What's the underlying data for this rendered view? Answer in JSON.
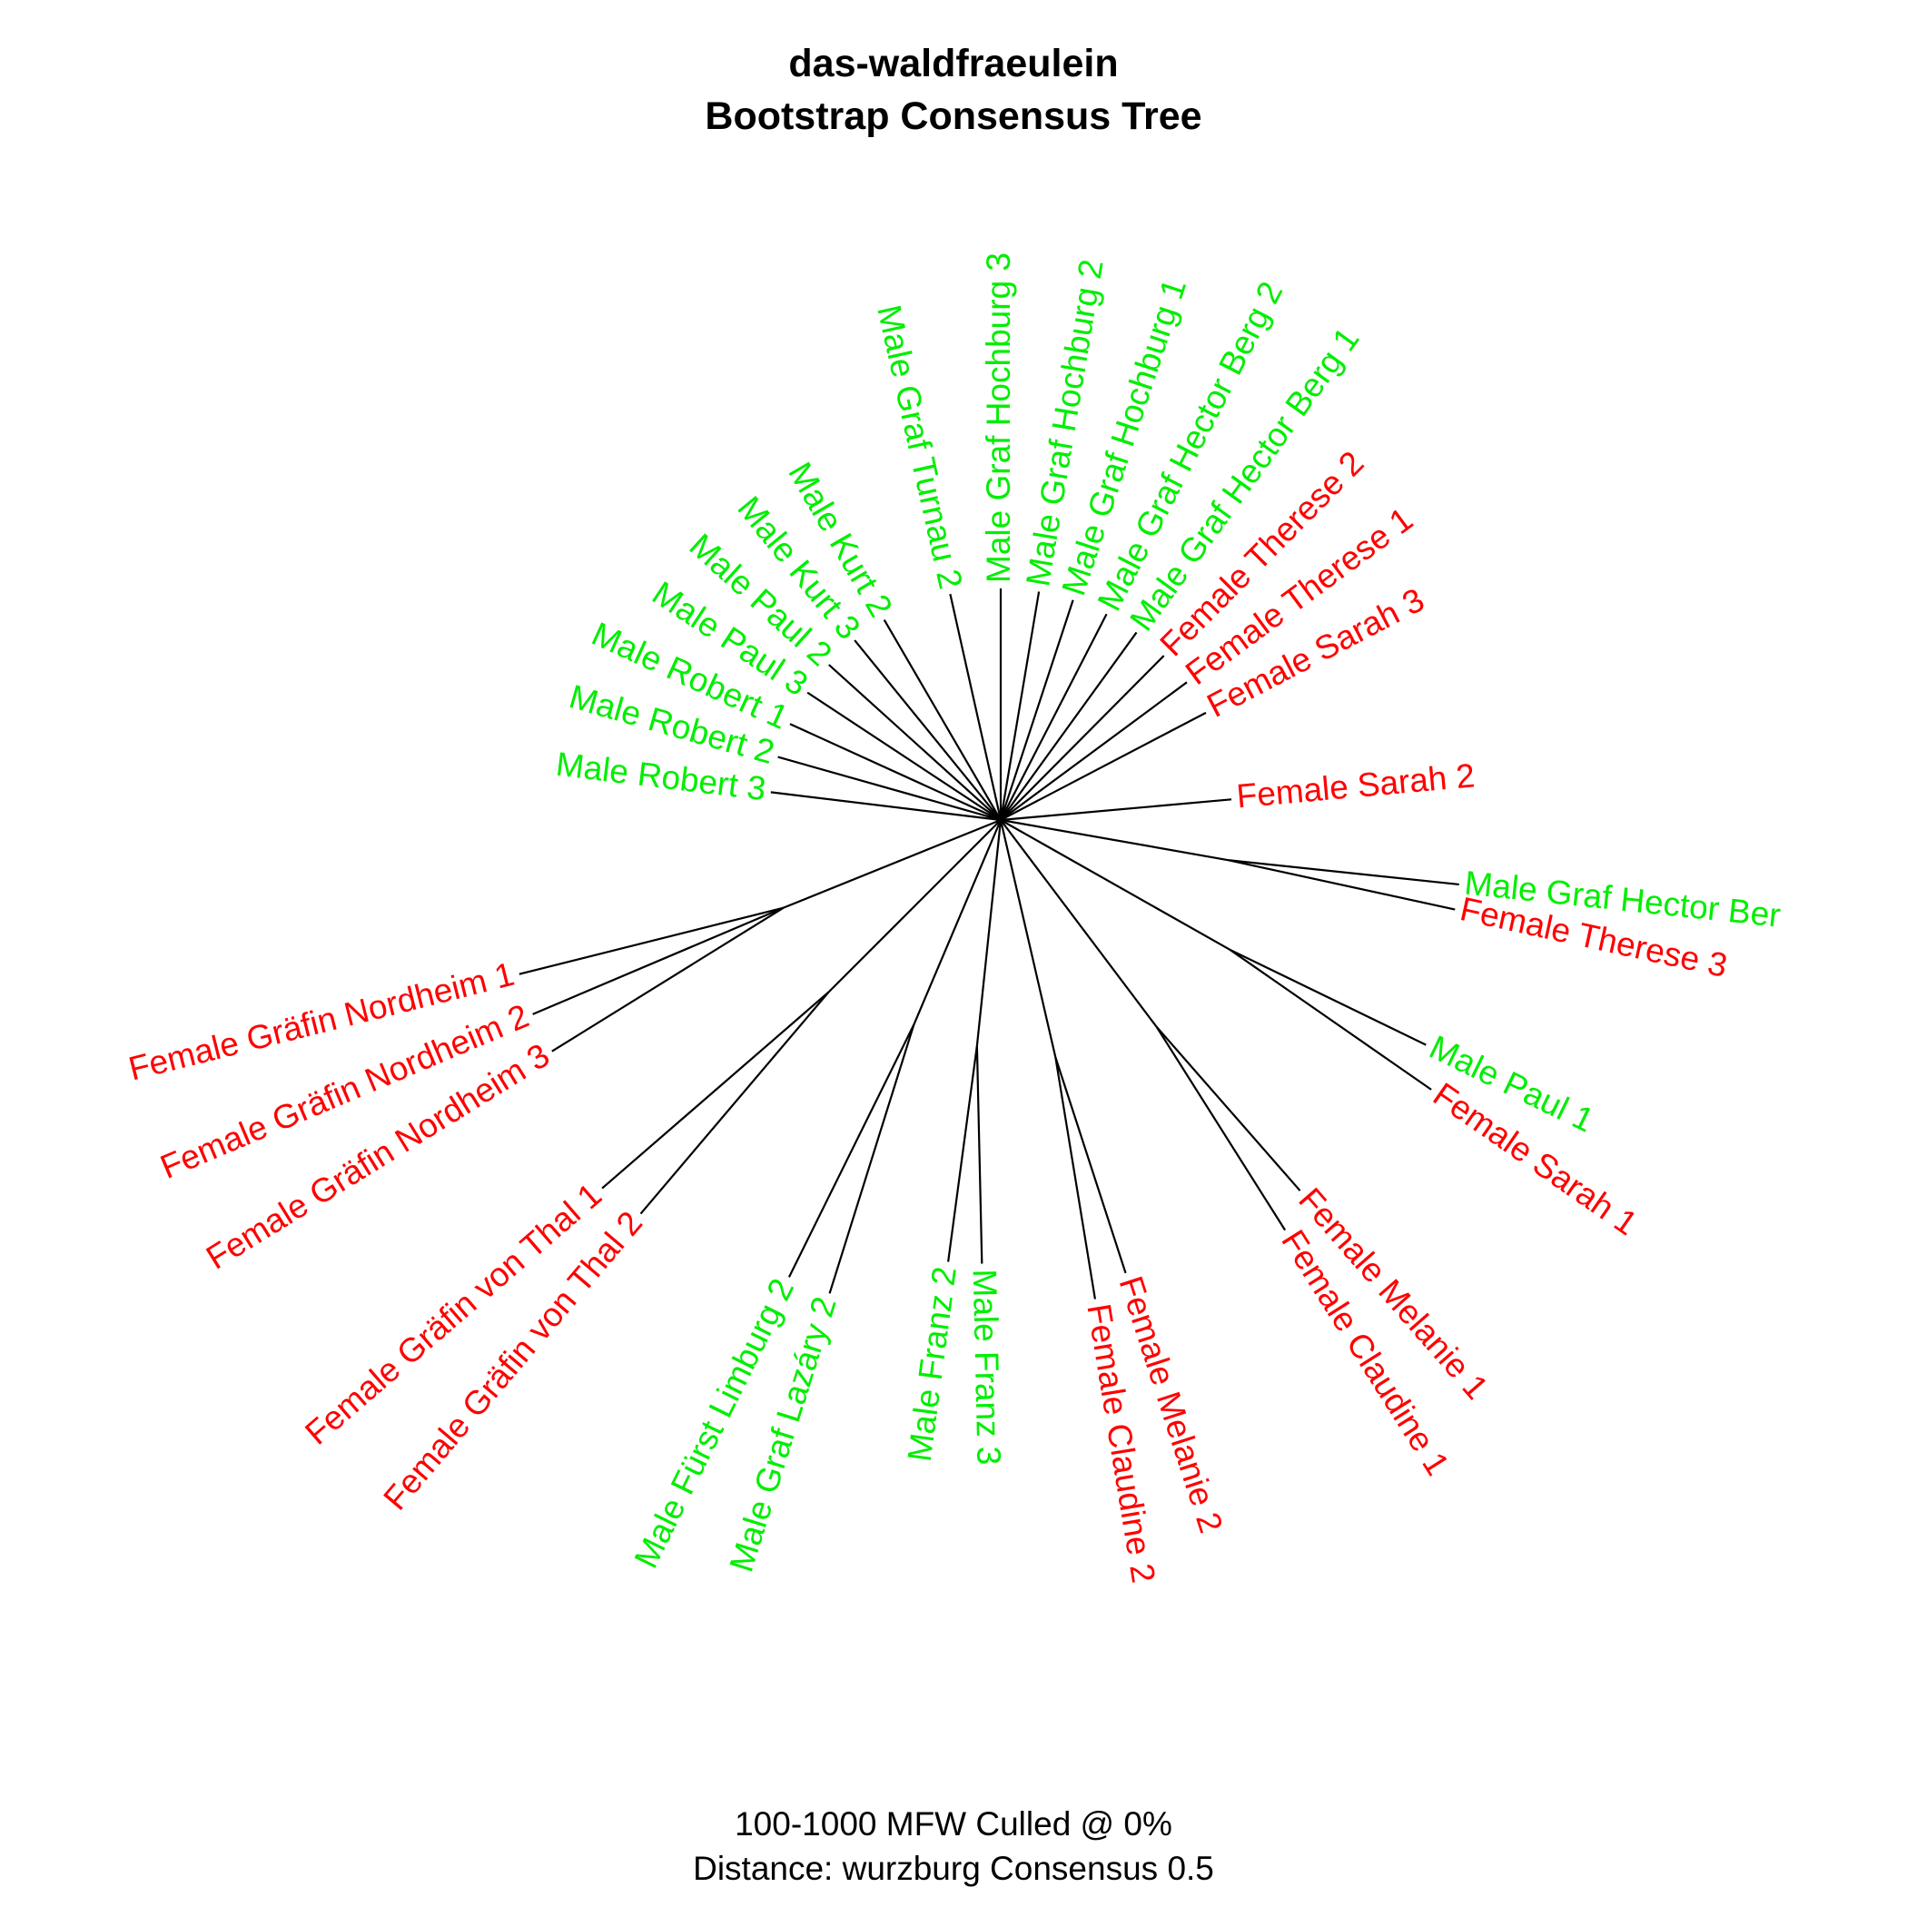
{
  "title": {
    "line1": "das-waldfraeulein",
    "line2": "Bootstrap Consensus Tree"
  },
  "footer": {
    "line1": "100-1000 MFW  Culled @ 0%",
    "line2": "Distance: wurzburg Consensus 0.5"
  },
  "colors": {
    "male": "#00ee00",
    "female": "#ff0000",
    "branch": "#000000"
  },
  "tree": {
    "type": "unrooted-radial",
    "groups": [
      {
        "leaves": [
          "Male Robert 3"
        ]
      },
      {
        "leaves": [
          "Male Robert 2"
        ]
      },
      {
        "leaves": [
          "Male Robert 1"
        ]
      },
      {
        "leaves": [
          "Male Paul 3"
        ]
      },
      {
        "leaves": [
          "Male Paul 2"
        ]
      },
      {
        "leaves": [
          "Male Kurt 3"
        ]
      },
      {
        "leaves": [
          "Male Kurt 2"
        ]
      },
      {
        "leaves": [
          "Male Graf Turnau 2"
        ]
      },
      {
        "leaves": [
          "Male Graf Hochburg 3"
        ]
      },
      {
        "leaves": [
          "Male Graf Hochburg 2"
        ]
      },
      {
        "leaves": [
          "Male Graf Hochburg 1"
        ]
      },
      {
        "leaves": [
          "Male Graf Hector Berg 2"
        ]
      },
      {
        "leaves": [
          "Male Graf Hector Berg 1"
        ]
      },
      {
        "leaves": [
          "Female Therese 2"
        ]
      },
      {
        "leaves": [
          "Female Therese 1"
        ]
      },
      {
        "leaves": [
          "Female Sarah 3"
        ]
      },
      {
        "leaves": [
          "Female Sarah 2"
        ]
      },
      {
        "leaves": [
          "Male Graf Hector Ber",
          "Female Therese 3"
        ]
      },
      {
        "leaves": [
          "Male Paul 1",
          "Female Sarah 1"
        ]
      },
      {
        "leaves": [
          "Female Melanie 1",
          "Female Claudine 1"
        ]
      },
      {
        "leaves": [
          "Female Melanie 2",
          "Female Claudine 2"
        ]
      },
      {
        "leaves": [
          "Male Franz 3",
          "Male Franz 2"
        ]
      },
      {
        "leaves": [
          "Male Graf Lazáry 2",
          "Male Fürst Limburg 2"
        ]
      },
      {
        "leaves": [
          "Female Gräfin von Thal 2",
          "Female Gräfin von Thal 1"
        ]
      },
      {
        "leaves": [
          "Female Gräfin Nordheim 3",
          "Female Gräfin Nordheim 2",
          "Female Gräfin Nordheim 1"
        ]
      }
    ]
  }
}
